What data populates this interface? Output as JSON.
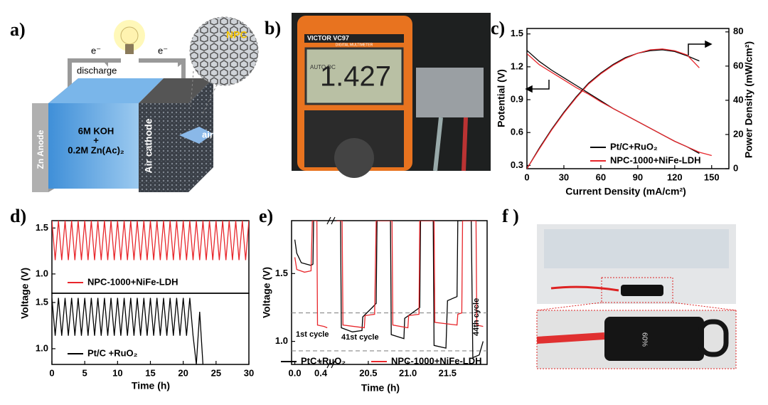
{
  "panel_labels": {
    "a": "a)",
    "b": "b)",
    "c": "c)",
    "d": "d)",
    "e": "e)",
    "f": "f )"
  },
  "diagram_a": {
    "electron_left": "e⁻",
    "electron_right": "e⁻",
    "discharge": "discharge",
    "magnified": "NPC",
    "anode": "Zn Anode",
    "electrolyte_1": "6M KOH",
    "electrolyte_2": "+",
    "electrolyte_3": "0.2M Zn(Ac)₂",
    "cathode": "Air cathode",
    "air": "air"
  },
  "photo_b": {
    "brand": "VICTOR VC97",
    "subtitle": "DIGITAL MULTIMETER",
    "mode": "AUTO DC",
    "reading": "1.427"
  },
  "photo_f": {
    "display": "60%"
  },
  "chart_data": [
    {
      "type": "line",
      "xlabel": "Current Density (mA/cm²)",
      "ylabel": "Potential (V)",
      "y2label": "Power Density (mW/cm²)",
      "x": [
        0,
        10,
        20,
        30,
        40,
        50,
        60,
        70,
        80,
        90,
        100,
        110,
        120,
        130,
        140,
        150
      ],
      "xlim": [
        0,
        164
      ],
      "xticks": [
        0,
        30,
        60,
        90,
        120,
        150
      ],
      "ylim": [
        0.27,
        1.55
      ],
      "yticks": [
        0.3,
        0.6,
        0.9,
        1.2,
        1.5
      ],
      "y2lim": [
        0,
        82
      ],
      "y2ticks": [
        0,
        20,
        40,
        60,
        80
      ],
      "series": [
        {
          "name": "Pt/C+RuO₂",
          "color": "#000000",
          "values": [
            1.35,
            1.25,
            1.17,
            1.1,
            1.03,
            0.96,
            0.89,
            0.82,
            0.76,
            0.7,
            0.64,
            0.58,
            0.52,
            0.47,
            0.41,
            null
          ]
        },
        {
          "name": "NPC-1000+NiFe-LDH",
          "color": "#e8262b",
          "values": [
            1.32,
            1.22,
            1.15,
            1.08,
            1.01,
            0.95,
            0.88,
            0.82,
            0.76,
            0.7,
            0.64,
            0.58,
            0.52,
            0.47,
            0.42,
            0.39
          ]
        },
        {
          "color": "#000000",
          "axis": "y2",
          "values": [
            0,
            12,
            23,
            33,
            42,
            50,
            56,
            61,
            65,
            67.5,
            69,
            69.5,
            68.5,
            66,
            63,
            null
          ]
        },
        {
          "color": "#e8262b",
          "axis": "y2",
          "values": [
            0,
            11.5,
            22.5,
            32.5,
            41.5,
            49.5,
            55.5,
            60.5,
            64.5,
            67.5,
            69.5,
            70,
            69,
            66.5,
            59,
            null
          ]
        }
      ]
    },
    {
      "type": "line",
      "ylabel": "Voltage (V)",
      "x": [
        0,
        0.5,
        1,
        1.5,
        2,
        2.5,
        3,
        3.5,
        4,
        4.5,
        5,
        5.5,
        6,
        6.5,
        7,
        7.5,
        8,
        8.5,
        9,
        9.5,
        10,
        10.5,
        11,
        11.5,
        12,
        12.5,
        13,
        13.5,
        14,
        14.5,
        15,
        15.5,
        16,
        16.5,
        17,
        17.5,
        18,
        18.5,
        19,
        19.5,
        20,
        20.5,
        21,
        21.5,
        22,
        22.5,
        23,
        23.5,
        24,
        24.5,
        25,
        25.5,
        26,
        26.5,
        27,
        27.5,
        28,
        28.5,
        29,
        29.5,
        30
      ],
      "xlim": [
        0,
        30
      ],
      "ylim": [
        0.79,
        1.58
      ],
      "yticks": [
        {
          "value": 1,
          "label": "1.0"
        },
        1.5
      ],
      "series": [
        {
          "name": "NPC-1000+NiFe-LDH",
          "color": "#e8262b",
          "values": [
            1.58,
            1.15,
            1.58,
            1.15,
            1.58,
            1.15,
            1.58,
            1.15,
            1.58,
            1.15,
            1.58,
            1.15,
            1.58,
            1.15,
            1.58,
            1.15,
            1.58,
            1.15,
            1.58,
            1.15,
            1.58,
            1.15,
            1.58,
            1.15,
            1.58,
            1.15,
            1.58,
            1.15,
            1.58,
            1.15,
            1.58,
            1.15,
            1.58,
            1.15,
            1.58,
            1.15,
            1.58,
            1.15,
            1.58,
            1.15,
            1.58,
            1.15,
            1.58,
            1.15,
            1.58,
            1.15,
            1.58,
            1.15,
            1.58,
            1.15,
            1.58,
            1.15,
            1.58,
            1.15,
            1.58,
            1.15,
            1.58,
            1.15,
            1.58,
            1.15,
            1.58
          ]
        }
      ]
    },
    {
      "type": "line",
      "xlabel": "Time (h)",
      "x": [
        0,
        0.5,
        1,
        1.5,
        2,
        2.5,
        3,
        3.5,
        4,
        4.5,
        5,
        5.5,
        6,
        6.5,
        7,
        7.5,
        8,
        8.5,
        9,
        9.5,
        10,
        10.5,
        11,
        11.5,
        12,
        12.5,
        13,
        13.5,
        14,
        14.5,
        15,
        15.5,
        16,
        16.5,
        17,
        17.5,
        18,
        18.5,
        19,
        19.5,
        20,
        20.5,
        21,
        21.5,
        22,
        22.5,
        23
      ],
      "xlim": [
        0,
        30
      ],
      "xticks": [
        0,
        5,
        10,
        15,
        20,
        25,
        30
      ],
      "ylim": [
        0.83,
        1.6
      ],
      "yticks": [
        {
          "value": 1,
          "label": "1.0"
        },
        1.5
      ],
      "series": [
        {
          "name": "Pt/C +RuO₂",
          "color": "#000000",
          "values": [
            1.55,
            1.14,
            1.55,
            1.14,
            1.55,
            1.14,
            1.55,
            1.14,
            1.55,
            1.14,
            1.55,
            1.14,
            1.55,
            1.14,
            1.55,
            1.14,
            1.55,
            1.14,
            1.55,
            1.14,
            1.55,
            1.14,
            1.55,
            1.14,
            1.55,
            1.14,
            1.55,
            1.14,
            1.55,
            1.14,
            1.55,
            1.14,
            1.55,
            1.14,
            1.55,
            1.14,
            1.55,
            1.14,
            1.55,
            1.14,
            1.55,
            1.14,
            1.55,
            1.14,
            0.83,
            1.4,
            0.83
          ]
        }
      ]
    },
    {
      "type": "line",
      "xlabel": "Time (h)",
      "ylabel": "Voltage (V)",
      "xlim_segments": [
        [
          -0.05,
          0.52
        ],
        [
          20.07,
          22.0
        ]
      ],
      "xticks": [
        {
          "value": 0,
          "label": "0.0"
        },
        0.4,
        20.5,
        {
          "value": 21,
          "label": "21.0"
        },
        21.5
      ],
      "ylim": [
        0.83,
        1.89
      ],
      "yticks": [
        {
          "value": 1,
          "label": "1.0"
        },
        1.5
      ],
      "hlines": [
        1.21,
        0.93
      ],
      "annotations": [
        "1st cycle",
        "41st cycle",
        "44th cycle"
      ],
      "series": [
        {
          "name": "PtC+RuO₂",
          "color": "#000000",
          "x": [
            0,
            0.03,
            0.1,
            0.25,
            0.28,
            0.29,
            20.1,
            20.15,
            20.16,
            20.3,
            20.42,
            20.43,
            20.55,
            20.6,
            20.61,
            20.78,
            20.79,
            20.95,
            20.96,
            21.15,
            21.16,
            21.32,
            21.33,
            21.48,
            21.5,
            21.62,
            21.63,
            21.8,
            21.82,
            21.9,
            21.95
          ],
          "values": [
            1.75,
            1.65,
            1.58,
            1.56,
            1.57,
            1.89,
            1.89,
            1.89,
            1.1,
            1.07,
            1.08,
            1.18,
            1.25,
            1.28,
            1.89,
            1.89,
            1.05,
            1.02,
            1.17,
            1.25,
            1.89,
            1.89,
            0.97,
            0.95,
            1.3,
            1.33,
            1.89,
            1.89,
            0.88,
            0.9,
            1.0
          ]
        },
        {
          "name": "NPC-1000+NiFe-LDH",
          "color": "#e8262b",
          "x": [
            0,
            0.03,
            0.15,
            0.25,
            0.27,
            0.34,
            0.35,
            0.45,
            0.5,
            20.1,
            20.17,
            20.18,
            20.45,
            20.46,
            20.58,
            20.6,
            20.8,
            20.81,
            21.0,
            21.01,
            21.14,
            21.15,
            21.33,
            21.34,
            21.62,
            21.63,
            21.68,
            21.69,
            21.86,
            21.87,
            21.95
          ],
          "values": [
            1.62,
            1.53,
            1.51,
            1.52,
            1.89,
            1.89,
            1.12,
            1.11,
            1.1,
            1.89,
            1.89,
            1.12,
            1.1,
            1.19,
            1.2,
            1.89,
            1.89,
            1.12,
            1.1,
            1.19,
            1.2,
            1.89,
            1.89,
            1.14,
            1.12,
            1.2,
            1.21,
            1.89,
            1.89,
            1.12,
            1.11
          ]
        }
      ]
    }
  ]
}
